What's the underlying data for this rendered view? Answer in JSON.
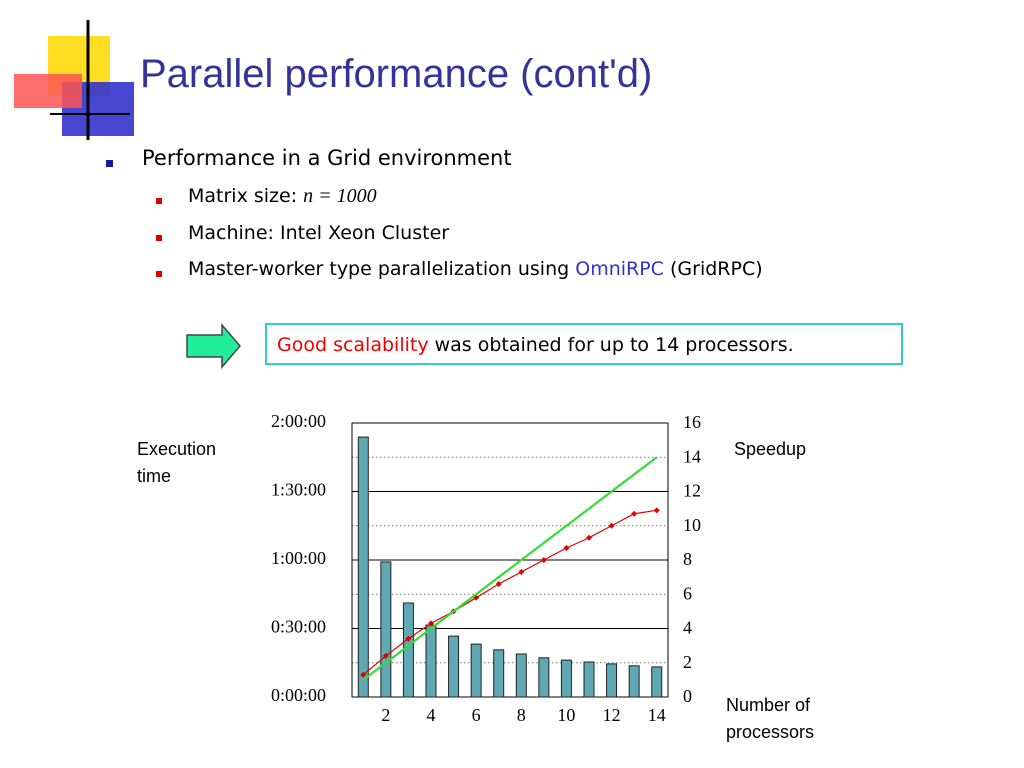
{
  "slide": {
    "title": "Parallel performance (cont'd)",
    "bullet": "Performance in a Grid environment",
    "sub_bullets": [
      {
        "label": "Matrix size:",
        "formula": "n = 1000"
      },
      {
        "text": "Machine: Intel Xeon Cluster"
      },
      {
        "text": "Master-worker type parallelization using",
        "link": "OmniRPC",
        "suffix": "(GridRPC)"
      }
    ],
    "callout": {
      "highlight": "Good scalability",
      "text": "was obtained for up to 14 processors."
    }
  },
  "chart_data": {
    "type": "bar",
    "ylabel": "Execution time",
    "y2label": "Speedup",
    "xlabel": "Number of processors",
    "categories": [
      null,
      "2",
      null,
      "4",
      null,
      "6",
      null,
      "8",
      null,
      "10",
      null,
      "12",
      null,
      "14"
    ],
    "series": [
      {
        "type": "bar",
        "color": "#5fa8b4",
        "values": [
          6830,
          3550,
          2470,
          1890,
          1600,
          1390,
          1240,
          1130,
          1030,
          970,
          920,
          870,
          820,
          790
        ]
      },
      {
        "type": "line",
        "axis": "y2",
        "color": "#e00000",
        "values": [
          1.3,
          2.4,
          3.4,
          4.3,
          5.0,
          5.8,
          6.6,
          7.3,
          8.0,
          8.7,
          9.3,
          10.0,
          10.7,
          10.9
        ]
      },
      {
        "type": "line",
        "axis": "y2",
        "color": "#33dd33",
        "values": [
          1,
          2,
          3,
          4,
          5,
          6,
          7,
          8,
          9,
          10,
          11,
          12,
          13,
          14
        ]
      }
    ],
    "ylim": [
      0,
      7200
    ],
    "yticks": [
      {
        "value": 0,
        "label": "0:00:00"
      },
      {
        "value": 1800,
        "label": "0:30:00"
      },
      {
        "value": 3600,
        "label": "1:00:00"
      },
      {
        "value": 5400,
        "label": "1:30:00"
      },
      {
        "value": 7200,
        "label": "2:00:00"
      }
    ],
    "minor_yticks": [
      900,
      2700,
      4500,
      6300
    ],
    "y2lim": [
      0,
      16
    ],
    "y2ticks": [
      0,
      2,
      4,
      6,
      8,
      10,
      12,
      14,
      16
    ],
    "grid": true
  }
}
